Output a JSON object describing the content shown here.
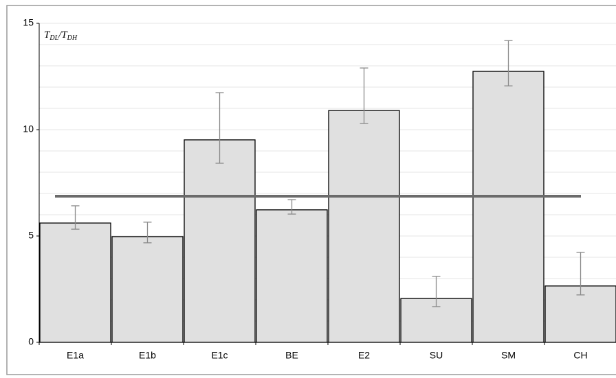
{
  "chart_data": {
    "type": "bar",
    "y_label_parts": [
      "T",
      "DL",
      "/T",
      "DH"
    ],
    "categories": [
      "E1a",
      "E1b",
      "E1c",
      "BE",
      "E2",
      "SU",
      "SM",
      "CH"
    ],
    "values": [
      5.61,
      4.97,
      9.52,
      6.23,
      10.9,
      2.06,
      12.74,
      2.65
    ],
    "error_upper": [
      6.42,
      5.65,
      11.74,
      6.71,
      12.9,
      3.1,
      14.19,
      4.23
    ],
    "error_lower": [
      5.32,
      4.68,
      8.42,
      6.03,
      10.29,
      1.68,
      12.06,
      2.23
    ],
    "reference_line": 6.87,
    "color": "#e0e0e0",
    "reference_color": "#6b6b6b",
    "error_color": "#8a8a8a",
    "ylim": [
      0,
      15
    ],
    "yticks": [
      0,
      5,
      10,
      15
    ],
    "ygrid": [
      1,
      2,
      3,
      4,
      5,
      6,
      7,
      8,
      9,
      10,
      11,
      12,
      13,
      14,
      15
    ],
    "grid": true
  }
}
